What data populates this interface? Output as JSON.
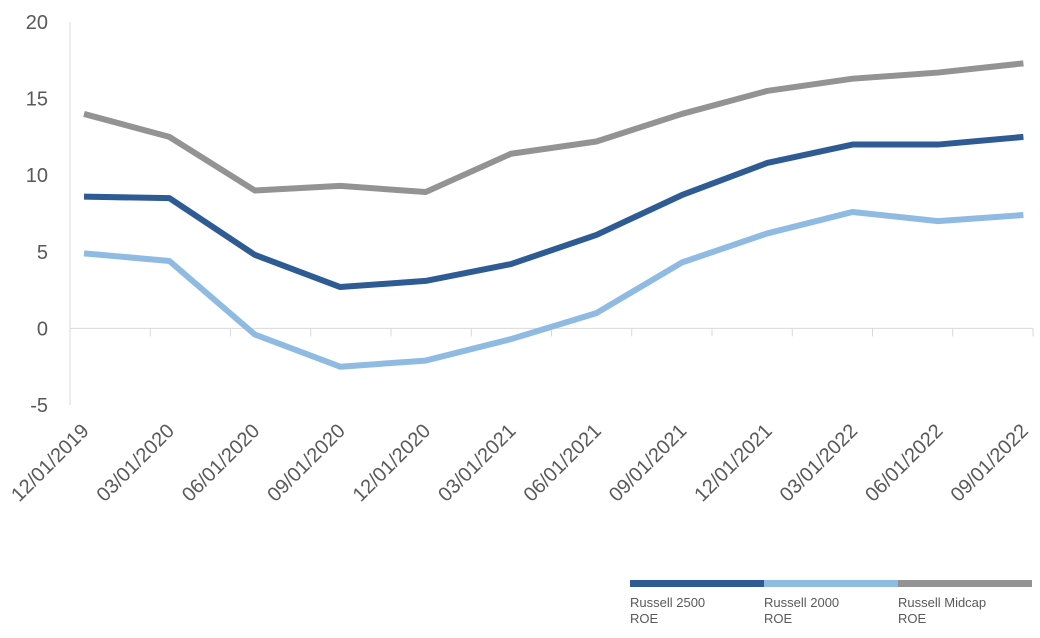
{
  "chart_data": {
    "type": "line",
    "title": "",
    "xlabel": "",
    "ylabel": "",
    "categories": [
      "12/01/2019",
      "03/01/2020",
      "06/01/2020",
      "09/01/2020",
      "12/01/2020",
      "03/01/2021",
      "06/01/2021",
      "09/01/2021",
      "12/01/2021",
      "03/01/2022",
      "06/01/2022",
      "09/01/2022"
    ],
    "ylim": [
      -5,
      20
    ],
    "yticks": [
      "20",
      "15",
      "10",
      "5",
      "0",
      "-5"
    ],
    "ytick_values": [
      20,
      15,
      10,
      5,
      0,
      -5
    ],
    "grid": false,
    "legend_position": "bottom-right",
    "series": [
      {
        "name": "Russell 2500 ROE",
        "label_lines": "Russell 2500\nROE",
        "color": "#2e5b94",
        "values": [
          8.6,
          8.5,
          4.8,
          2.7,
          3.1,
          4.2,
          6.1,
          8.7,
          10.8,
          12.0,
          12.0,
          12.5
        ]
      },
      {
        "name": "Russell 2000 ROE",
        "label_lines": "Russell 2000\nROE",
        "color": "#8fbbe3",
        "values": [
          4.9,
          4.4,
          -0.4,
          -2.5,
          -2.1,
          -0.7,
          1.0,
          4.3,
          6.2,
          7.6,
          7.0,
          7.4
        ]
      },
      {
        "name": "Russell Midcap ROE",
        "label_lines": "Russell Midcap\nROE",
        "color": "#939393",
        "values": [
          14.0,
          12.5,
          9.0,
          9.3,
          8.9,
          11.4,
          12.2,
          14.0,
          15.5,
          16.3,
          16.7,
          17.3
        ]
      }
    ]
  }
}
